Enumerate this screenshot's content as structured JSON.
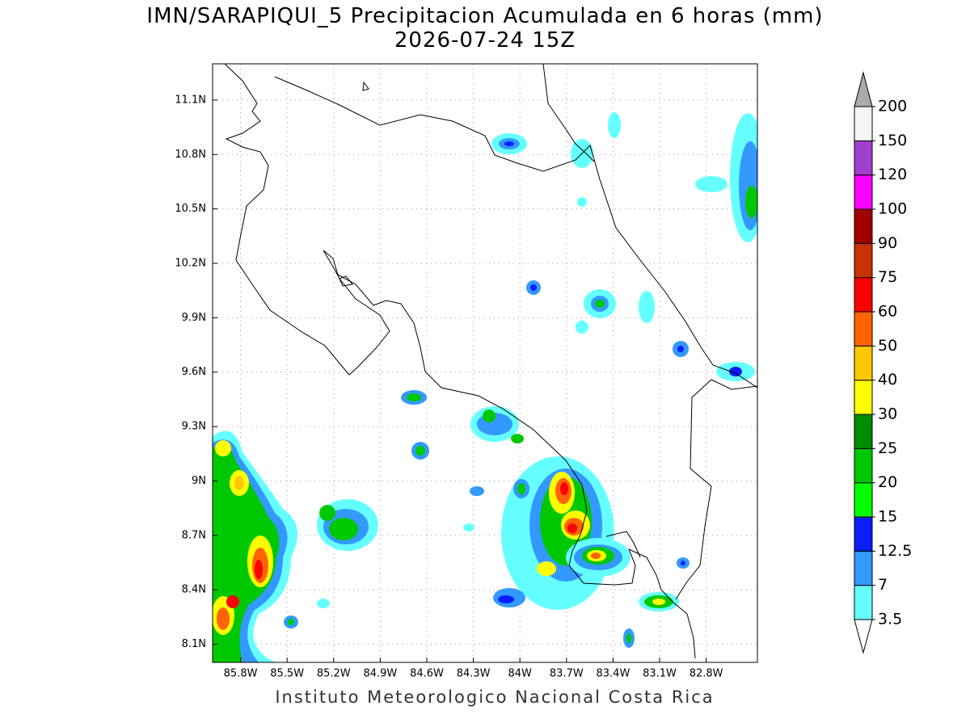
{
  "title": "IMN/SARAPIQUI_5 Precipitacion Acumulada en 6 horas (mm)",
  "subtitle": "2026-07-24 15Z",
  "lonlim": [
    -85.98,
    -82.47
  ],
  "latlim": [
    8.0,
    11.3
  ],
  "lon_ticks": [
    {
      "value": -85.8,
      "label": "85.8W"
    },
    {
      "value": -85.5,
      "label": "85.5W"
    },
    {
      "value": -85.2,
      "label": "85.2W"
    },
    {
      "value": -84.9,
      "label": "84.9W"
    },
    {
      "value": -84.6,
      "label": "84.6W"
    },
    {
      "value": -84.3,
      "label": "84.3W"
    },
    {
      "value": -84,
      "label": "84W"
    },
    {
      "value": -83.7,
      "label": "83.7W"
    },
    {
      "value": -83.4,
      "label": "83.4W"
    },
    {
      "value": -83.1,
      "label": "83.1W"
    },
    {
      "value": -82.8,
      "label": "82.8W"
    }
  ],
  "lat_ticks": [
    {
      "value": 8.1,
      "label": "8.1N"
    },
    {
      "value": 8.4,
      "label": "8.4N"
    },
    {
      "value": 8.7,
      "label": "8.7N"
    },
    {
      "value": 9,
      "label": "9N"
    },
    {
      "value": 9.3,
      "label": "9.3N"
    },
    {
      "value": 9.6,
      "label": "9.6N"
    },
    {
      "value": 9.9,
      "label": "9.9N"
    },
    {
      "value": 10.2,
      "label": "10.2N"
    },
    {
      "value": 10.5,
      "label": "10.5N"
    },
    {
      "value": 10.8,
      "label": "10.8N"
    },
    {
      "value": 11.1,
      "label": "11.1N"
    }
  ],
  "colorbar": {
    "levels": [
      3.5,
      7,
      12.5,
      15,
      20,
      25,
      30,
      40,
      50,
      60,
      75,
      90,
      100,
      120,
      150,
      200
    ],
    "colors": [
      "#66ffff",
      "#3399ff",
      "#0a1eff",
      "#00ff00",
      "#00c800",
      "#008c00",
      "#ffff00",
      "#ffc800",
      "#ff6400",
      "#ff0000",
      "#c83200",
      "#a00000",
      "#ff00ff",
      "#a040d0",
      "#f5f5f5"
    ],
    "under_color": "#ffffff",
    "over_color": "#aaaaaa"
  },
  "credit": "Instituto Meteorologico Nacional Costa Rica"
}
